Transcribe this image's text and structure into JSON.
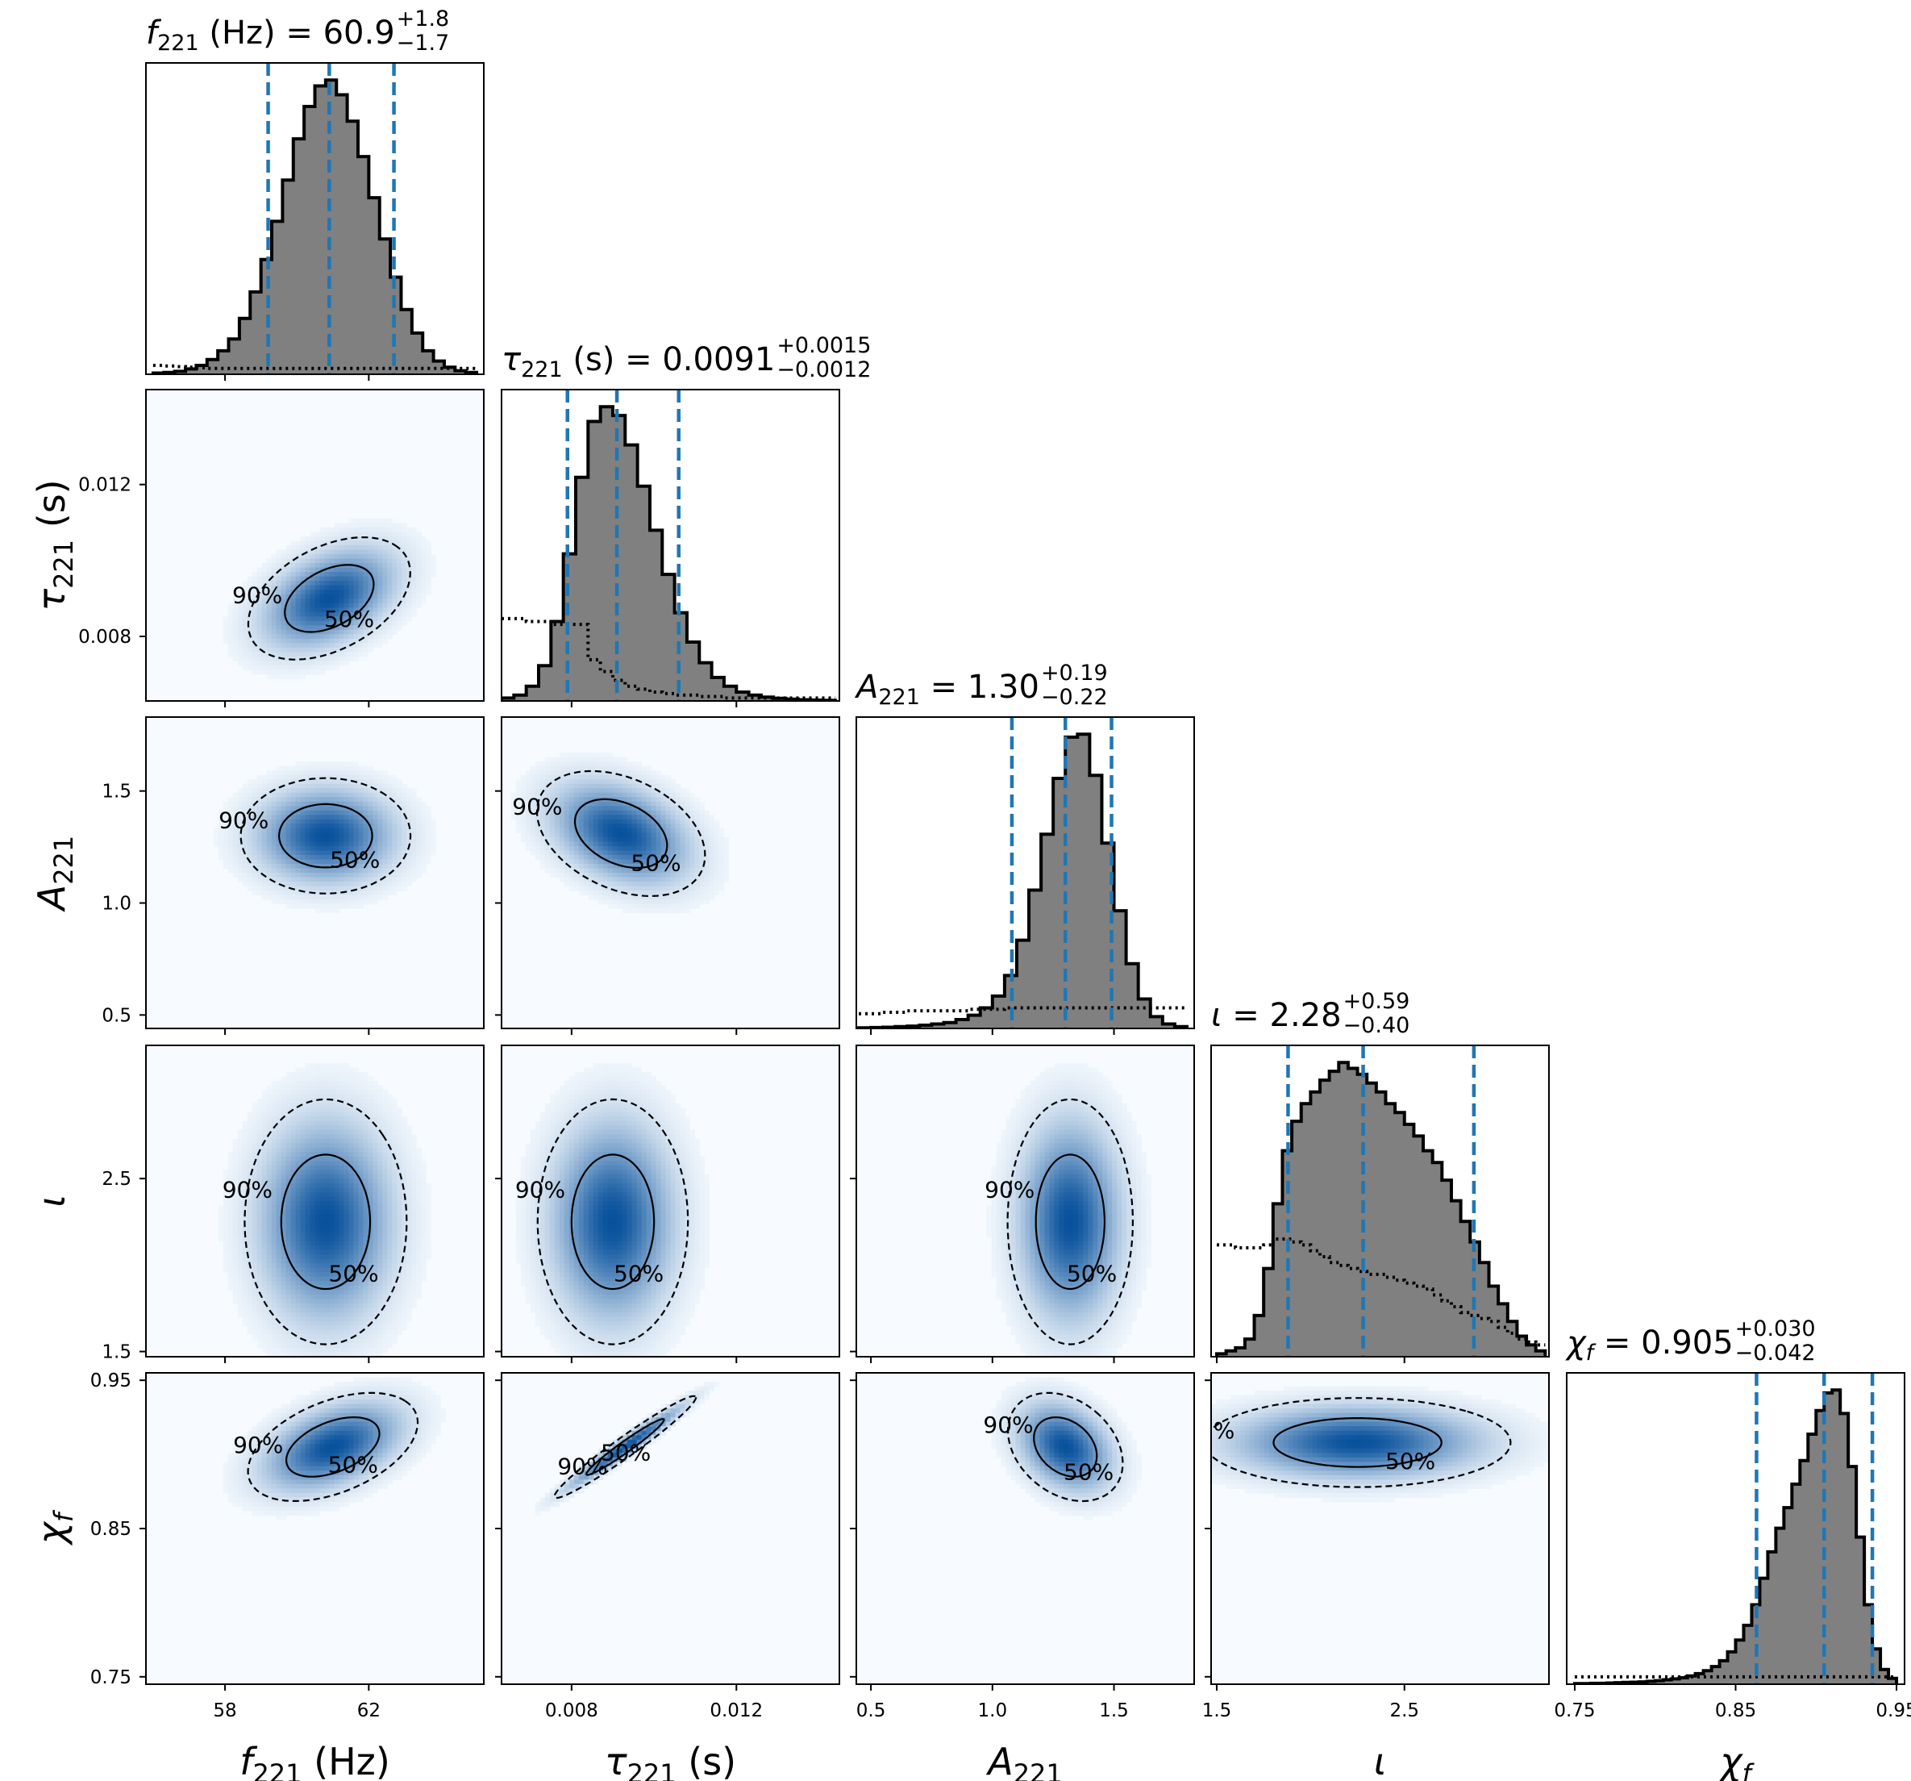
{
  "chart_data": {
    "type": "corner",
    "parameters": [
      {
        "name": "f_221",
        "unit": "Hz",
        "axis_label": {
          "sym": "f",
          "sub": "221",
          "unit": " (Hz)"
        },
        "range": [
          55.8,
          65.2
        ],
        "ticks": [
          58,
          62
        ],
        "tick_labels": [
          "58",
          "62"
        ],
        "title": {
          "prefix": " (Hz) = ",
          "median": "60.9",
          "plus": "+1.8",
          "minus": "−1.7"
        },
        "median": 60.9,
        "lower": 59.2,
        "upper": 62.7
      },
      {
        "name": "tau_221",
        "unit": "s",
        "axis_label": {
          "sym": "τ",
          "sub": "221",
          "unit": " (s)"
        },
        "range": [
          0.0063,
          0.0145
        ],
        "ticks": [
          0.008,
          0.012
        ],
        "tick_labels": [
          "0.008",
          "0.012"
        ],
        "title": {
          "prefix": " (s) = ",
          "median": "0.0091",
          "plus": "+0.0015",
          "minus": "−0.0012"
        },
        "median": 0.0091,
        "lower": 0.0079,
        "upper": 0.0106
      },
      {
        "name": "A_221",
        "unit": "",
        "axis_label": {
          "sym": "A",
          "sub": "221",
          "unit": ""
        },
        "range": [
          0.44,
          1.83
        ],
        "ticks": [
          0.5,
          1.0,
          1.5
        ],
        "tick_labels": [
          "0.5",
          "1.0",
          "1.5"
        ],
        "title": {
          "prefix": " = ",
          "median": "1.30",
          "plus": "+0.19",
          "minus": "−0.22"
        },
        "median": 1.3,
        "lower": 1.08,
        "upper": 1.49
      },
      {
        "name": "iota",
        "unit": "",
        "axis_label": {
          "sym": "ι",
          "sub": "",
          "unit": ""
        },
        "range": [
          1.47,
          3.27
        ],
        "ticks": [
          1.5,
          2.5
        ],
        "tick_labels": [
          "1.5",
          "2.5"
        ],
        "title": {
          "prefix": " = ",
          "median": "2.28",
          "plus": "+0.59",
          "minus": "−0.40"
        },
        "median": 2.28,
        "lower": 1.88,
        "upper": 2.87
      },
      {
        "name": "chi_f",
        "unit": "",
        "axis_label": {
          "sym": "χ",
          "sub": "f",
          "unit": ""
        },
        "range": [
          0.745,
          0.955
        ],
        "ticks": [
          0.75,
          0.85,
          0.95
        ],
        "tick_labels": [
          "0.75",
          "0.85",
          "0.95"
        ],
        "title": {
          "prefix": " = ",
          "median": "0.905",
          "plus": "+0.030",
          "minus": "−0.042"
        },
        "median": 0.905,
        "lower": 0.863,
        "upper": 0.935
      }
    ],
    "histograms": [
      {
        "param": "f_221",
        "bins": [
          56.0,
          56.3,
          56.6,
          56.9,
          57.2,
          57.5,
          57.8,
          58.1,
          58.4,
          58.7,
          59.0,
          59.3,
          59.6,
          59.9,
          60.2,
          60.5,
          60.8,
          61.1,
          61.4,
          61.7,
          62.0,
          62.3,
          62.6,
          62.9,
          63.2,
          63.5,
          63.8,
          64.1,
          64.4,
          64.7,
          65.0
        ],
        "counts": [
          0.004,
          0.006,
          0.01,
          0.018,
          0.03,
          0.05,
          0.08,
          0.12,
          0.19,
          0.28,
          0.39,
          0.52,
          0.66,
          0.8,
          0.91,
          0.98,
          1.0,
          0.95,
          0.86,
          0.74,
          0.6,
          0.46,
          0.33,
          0.22,
          0.14,
          0.08,
          0.045,
          0.024,
          0.012,
          0.006
        ],
        "prior": [
          0.03,
          0.028,
          0.026,
          0.024,
          0.022,
          0.02,
          0.02,
          0.02,
          0.02,
          0.02,
          0.02,
          0.02,
          0.02,
          0.02,
          0.02,
          0.02,
          0.02,
          0.02,
          0.02,
          0.02,
          0.02,
          0.02,
          0.02,
          0.02,
          0.02,
          0.02,
          0.02,
          0.02,
          0.02,
          0.02
        ]
      },
      {
        "param": "tau_221",
        "bins": [
          0.0063,
          0.0066,
          0.0069,
          0.0072,
          0.0075,
          0.0078,
          0.0081,
          0.0084,
          0.0087,
          0.009,
          0.0093,
          0.0096,
          0.0099,
          0.0102,
          0.0105,
          0.0108,
          0.0111,
          0.0114,
          0.0117,
          0.012,
          0.0123,
          0.0126,
          0.0129,
          0.0132,
          0.0135,
          0.0138,
          0.0141,
          0.0144
        ],
        "counts": [
          0.01,
          0.02,
          0.05,
          0.12,
          0.27,
          0.5,
          0.76,
          0.95,
          1.0,
          0.97,
          0.87,
          0.73,
          0.58,
          0.43,
          0.3,
          0.2,
          0.13,
          0.08,
          0.05,
          0.03,
          0.02,
          0.013,
          0.009,
          0.006,
          0.004,
          0.003,
          0.002
        ],
        "prior": [
          0.28,
          0.28,
          0.27,
          0.27,
          0.26,
          0.26,
          0.26,
          0.14,
          0.1,
          0.07,
          0.05,
          0.04,
          0.03,
          0.025,
          0.02,
          0.02,
          0.015,
          0.015,
          0.01,
          0.01,
          0.01,
          0.01,
          0.01,
          0.01,
          0.01,
          0.01,
          0.01
        ]
      },
      {
        "param": "A_221",
        "bins": [
          0.45,
          0.5,
          0.55,
          0.6,
          0.65,
          0.7,
          0.75,
          0.8,
          0.85,
          0.9,
          0.95,
          1.0,
          1.05,
          1.1,
          1.15,
          1.2,
          1.25,
          1.3,
          1.35,
          1.4,
          1.45,
          1.5,
          1.55,
          1.6,
          1.65,
          1.7,
          1.75,
          1.8
        ],
        "counts": [
          0.002,
          0.003,
          0.004,
          0.006,
          0.008,
          0.011,
          0.015,
          0.02,
          0.03,
          0.045,
          0.07,
          0.11,
          0.18,
          0.3,
          0.47,
          0.66,
          0.85,
          0.99,
          1.0,
          0.86,
          0.63,
          0.4,
          0.22,
          0.1,
          0.04,
          0.015,
          0.006
        ],
        "prior": [
          0.05,
          0.05,
          0.055,
          0.055,
          0.06,
          0.06,
          0.06,
          0.06,
          0.06,
          0.065,
          0.065,
          0.065,
          0.07,
          0.07,
          0.07,
          0.07,
          0.07,
          0.07,
          0.07,
          0.07,
          0.07,
          0.07,
          0.07,
          0.07,
          0.07,
          0.07,
          0.07
        ]
      },
      {
        "param": "iota",
        "bins": [
          1.5,
          1.55,
          1.6,
          1.65,
          1.7,
          1.75,
          1.8,
          1.85,
          1.9,
          1.95,
          2.0,
          2.05,
          2.1,
          2.15,
          2.2,
          2.25,
          2.3,
          2.35,
          2.4,
          2.45,
          2.5,
          2.55,
          2.6,
          2.65,
          2.7,
          2.75,
          2.8,
          2.85,
          2.9,
          2.95,
          3.0,
          3.05,
          3.1,
          3.15,
          3.2,
          3.25
        ],
        "counts": [
          0.01,
          0.02,
          0.03,
          0.06,
          0.14,
          0.3,
          0.52,
          0.7,
          0.8,
          0.86,
          0.9,
          0.94,
          0.97,
          1.0,
          0.98,
          0.96,
          0.93,
          0.9,
          0.86,
          0.83,
          0.79,
          0.75,
          0.7,
          0.66,
          0.6,
          0.53,
          0.46,
          0.39,
          0.32,
          0.24,
          0.18,
          0.12,
          0.07,
          0.04,
          0.02
        ],
        "prior": [
          0.38,
          0.38,
          0.37,
          0.37,
          0.37,
          0.38,
          0.4,
          0.4,
          0.39,
          0.38,
          0.36,
          0.34,
          0.32,
          0.31,
          0.3,
          0.29,
          0.28,
          0.28,
          0.27,
          0.26,
          0.25,
          0.24,
          0.23,
          0.21,
          0.19,
          0.17,
          0.15,
          0.14,
          0.13,
          0.12,
          0.1,
          0.08,
          0.06,
          0.05,
          0.04
        ]
      },
      {
        "param": "chi_f",
        "bins": [
          0.75,
          0.755,
          0.76,
          0.765,
          0.77,
          0.775,
          0.78,
          0.785,
          0.79,
          0.795,
          0.8,
          0.805,
          0.81,
          0.815,
          0.82,
          0.825,
          0.83,
          0.835,
          0.84,
          0.845,
          0.85,
          0.855,
          0.86,
          0.865,
          0.87,
          0.875,
          0.88,
          0.885,
          0.89,
          0.895,
          0.9,
          0.905,
          0.91,
          0.915,
          0.92,
          0.925,
          0.93,
          0.935,
          0.94,
          0.945,
          0.95
        ],
        "counts": [
          0.002,
          0.002,
          0.003,
          0.003,
          0.004,
          0.005,
          0.006,
          0.007,
          0.008,
          0.01,
          0.012,
          0.015,
          0.018,
          0.022,
          0.028,
          0.036,
          0.046,
          0.06,
          0.08,
          0.11,
          0.15,
          0.2,
          0.27,
          0.36,
          0.45,
          0.53,
          0.6,
          0.68,
          0.76,
          0.85,
          0.93,
          0.99,
          1.0,
          0.92,
          0.74,
          0.5,
          0.27,
          0.12,
          0.05,
          0.02
        ],
        "prior": [
          0.025,
          0.025,
          0.025,
          0.025,
          0.025,
          0.025,
          0.025,
          0.025,
          0.025,
          0.025,
          0.025,
          0.025,
          0.025,
          0.025,
          0.025,
          0.025,
          0.025,
          0.025,
          0.025,
          0.025,
          0.025,
          0.025,
          0.025,
          0.025,
          0.025,
          0.025,
          0.025,
          0.025,
          0.025,
          0.025,
          0.025,
          0.025,
          0.025,
          0.025,
          0.025,
          0.025,
          0.025,
          0.025,
          0.025,
          0.025
        ]
      }
    ],
    "pairs": [
      {
        "x": "f_221",
        "y": "tau_221",
        "center": [
          60.9,
          0.009
        ],
        "sx": 1.05,
        "sy": 0.00075,
        "rho": 0.42
      },
      {
        "x": "f_221",
        "y": "A_221",
        "center": [
          60.8,
          1.3
        ],
        "sx": 1.1,
        "sy": 0.12,
        "rho": 0.0
      },
      {
        "x": "tau_221",
        "y": "A_221",
        "center": [
          0.0092,
          1.31
        ],
        "sx": 0.00095,
        "sy": 0.13,
        "rho": -0.35
      },
      {
        "x": "f_221",
        "y": "iota",
        "center": [
          60.8,
          2.25
        ],
        "sx": 1.05,
        "sy": 0.33,
        "rho": 0.0
      },
      {
        "x": "tau_221",
        "y": "iota",
        "center": [
          0.009,
          2.25
        ],
        "sx": 0.00085,
        "sy": 0.33,
        "rho": 0.0
      },
      {
        "x": "A_221",
        "y": "iota",
        "center": [
          1.32,
          2.25
        ],
        "sx": 0.12,
        "sy": 0.33,
        "rho": 0.0
      },
      {
        "x": "f_221",
        "y": "chi_f",
        "center": [
          61.0,
          0.905
        ],
        "sx": 1.1,
        "sy": 0.017,
        "rho": 0.45
      },
      {
        "x": "tau_221",
        "y": "chi_f",
        "center": [
          0.0093,
          0.905
        ],
        "sx": 0.0008,
        "sy": 0.016,
        "rho": 0.97
      },
      {
        "x": "A_221",
        "y": "chi_f",
        "center": [
          1.3,
          0.905
        ],
        "sx": 0.11,
        "sy": 0.017,
        "rho": -0.3
      },
      {
        "x": "iota",
        "y": "chi_f",
        "center": [
          2.25,
          0.908
        ],
        "sx": 0.38,
        "sy": 0.014,
        "rho": 0.0
      }
    ],
    "contour_levels": [
      "50%",
      "90%"
    ],
    "colors": {
      "hist_fill": "#808080",
      "hist_edge": "#000000",
      "quantile_line": "#1f77b4",
      "density_low": "#f7fbff",
      "density_high": "#08519c",
      "contour": "#000000"
    }
  }
}
